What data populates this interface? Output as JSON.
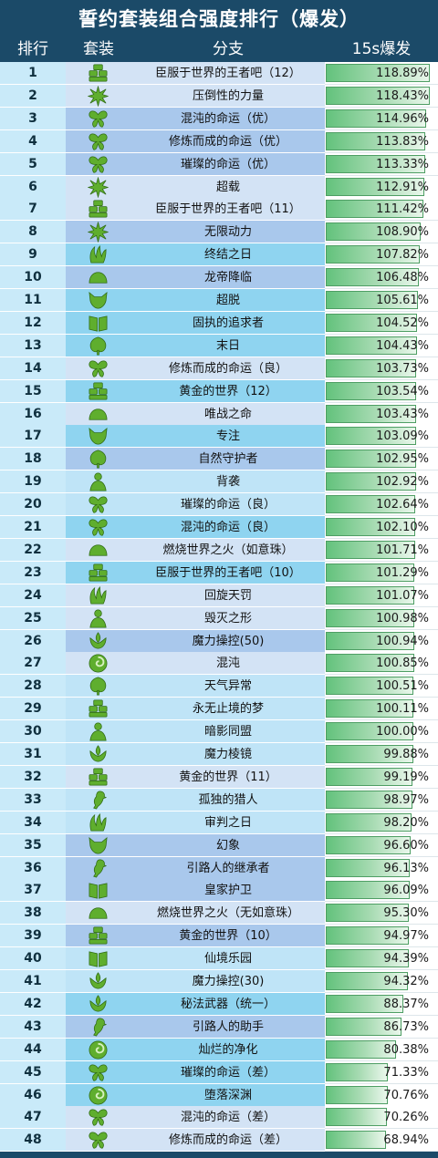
{
  "title": "誓约套装组合强度排行（爆发）",
  "headers": {
    "rank": "排行",
    "set": "套装",
    "branch": "分支",
    "burst": "15s爆发"
  },
  "colors": {
    "header_bg": "#1b4a68",
    "bar_start": "#63c27c",
    "bar_end": "#eaf7ec",
    "icon_green": "#5fae2e"
  },
  "chart_data": {
    "type": "table",
    "title": "誓约套装组合强度排行（爆发）",
    "columns": [
      "排行",
      "套装",
      "分支",
      "15s爆发"
    ],
    "rows": [
      {
        "rank": "1",
        "icon": "gold-bars-icon",
        "branch": "臣服于世界的王者吧（12）",
        "burst": 118.89,
        "label": "118.89%"
      },
      {
        "rank": "2",
        "icon": "spiky-burst-icon",
        "branch": "压倒性的力量",
        "burst": 118.43,
        "label": "118.43%"
      },
      {
        "rank": "3",
        "icon": "butterfly-icon",
        "branch": "混沌的命运（优）",
        "burst": 114.96,
        "label": "114.96%"
      },
      {
        "rank": "4",
        "icon": "butterfly-icon",
        "branch": "修炼而成的命运（优）",
        "burst": 113.83,
        "label": "113.83%"
      },
      {
        "rank": "5",
        "icon": "butterfly-icon",
        "branch": "璀璨的命运（优）",
        "burst": 113.33,
        "label": "113.33%"
      },
      {
        "rank": "6",
        "icon": "spiky-burst-icon",
        "branch": "超载",
        "burst": 112.91,
        "label": "112.91%"
      },
      {
        "rank": "7",
        "icon": "gold-bars-icon",
        "branch": "臣服于世界的王者吧（11）",
        "burst": 111.42,
        "label": "111.42%"
      },
      {
        "rank": "8",
        "icon": "spiky-burst-icon",
        "branch": "无限动力",
        "burst": 108.9,
        "label": "108.90%"
      },
      {
        "rank": "9",
        "icon": "claw-icon",
        "branch": "终结之日",
        "burst": 107.82,
        "label": "107.82%"
      },
      {
        "rank": "10",
        "icon": "dome-icon",
        "branch": "龙帝降临",
        "burst": 106.48,
        "label": "106.48%"
      },
      {
        "rank": "11",
        "icon": "fox-icon",
        "branch": "超脱",
        "burst": 105.61,
        "label": "105.61%"
      },
      {
        "rank": "12",
        "icon": "book-icon",
        "branch": "固执的追求者",
        "burst": 104.52,
        "label": "104.52%"
      },
      {
        "rank": "13",
        "icon": "leaf-icon",
        "branch": "末日",
        "burst": 104.43,
        "label": "104.43%"
      },
      {
        "rank": "14",
        "icon": "butterfly-icon",
        "branch": "修炼而成的命运（良）",
        "burst": 103.73,
        "label": "103.73%"
      },
      {
        "rank": "15",
        "icon": "gold-bars-icon",
        "branch": "黄金的世界（12）",
        "burst": 103.54,
        "label": "103.54%"
      },
      {
        "rank": "16",
        "icon": "dome-icon",
        "branch": "唯战之命",
        "burst": 103.43,
        "label": "103.43%"
      },
      {
        "rank": "17",
        "icon": "fox-icon",
        "branch": "专注",
        "burst": 103.09,
        "label": "103.09%"
      },
      {
        "rank": "18",
        "icon": "leaf-icon",
        "branch": "自然守护者",
        "burst": 102.95,
        "label": "102.95%"
      },
      {
        "rank": "19",
        "icon": "figure-icon",
        "branch": "背袭",
        "burst": 102.92,
        "label": "102.92%"
      },
      {
        "rank": "20",
        "icon": "butterfly-icon",
        "branch": "璀璨的命运（良）",
        "burst": 102.64,
        "label": "102.64%"
      },
      {
        "rank": "21",
        "icon": "butterfly-icon",
        "branch": "混沌的命运（良）",
        "burst": 102.1,
        "label": "102.10%"
      },
      {
        "rank": "22",
        "icon": "dome-icon",
        "branch": "燃烧世界之火（如意珠）",
        "burst": 101.71,
        "label": "101.71%"
      },
      {
        "rank": "23",
        "icon": "gold-bars-icon",
        "branch": "臣服于世界的王者吧（10）",
        "burst": 101.29,
        "label": "101.29%"
      },
      {
        "rank": "24",
        "icon": "claw-icon",
        "branch": "回旋天罚",
        "burst": 101.07,
        "label": "101.07%"
      },
      {
        "rank": "25",
        "icon": "figure-icon",
        "branch": "毁灭之形",
        "burst": 100.98,
        "label": "100.98%"
      },
      {
        "rank": "26",
        "icon": "lotus-icon",
        "branch": "魔力操控(50)",
        "burst": 100.94,
        "label": "100.94%"
      },
      {
        "rank": "27",
        "icon": "swirl-icon",
        "branch": "混沌",
        "burst": 100.85,
        "label": "100.85%"
      },
      {
        "rank": "28",
        "icon": "leaf-icon",
        "branch": "天气异常",
        "burst": 100.51,
        "label": "100.51%"
      },
      {
        "rank": "29",
        "icon": "gold-bars-icon",
        "branch": "永无止境的梦",
        "burst": 100.11,
        "label": "100.11%"
      },
      {
        "rank": "30",
        "icon": "figure-icon",
        "branch": "暗影同盟",
        "burst": 100.0,
        "label": "100.00%"
      },
      {
        "rank": "31",
        "icon": "lotus-icon",
        "branch": "魔力棱镜",
        "burst": 99.88,
        "label": "99.88%"
      },
      {
        "rank": "32",
        "icon": "gold-bars-icon",
        "branch": "黄金的世界（11）",
        "burst": 99.19,
        "label": "99.19%"
      },
      {
        "rank": "33",
        "icon": "bird-icon",
        "branch": "孤独的猎人",
        "burst": 98.97,
        "label": "98.97%"
      },
      {
        "rank": "34",
        "icon": "claw-icon",
        "branch": "审判之日",
        "burst": 98.2,
        "label": "98.20%"
      },
      {
        "rank": "35",
        "icon": "fox-icon",
        "branch": "幻象",
        "burst": 96.6,
        "label": "96.60%"
      },
      {
        "rank": "36",
        "icon": "bird-icon",
        "branch": "引路人的继承者",
        "burst": 96.13,
        "label": "96.13%"
      },
      {
        "rank": "37",
        "icon": "book-icon",
        "branch": "皇家护卫",
        "burst": 96.09,
        "label": "96.09%"
      },
      {
        "rank": "38",
        "icon": "dome-icon",
        "branch": "燃烧世界之火（无如意珠）",
        "burst": 95.3,
        "label": "95.30%"
      },
      {
        "rank": "39",
        "icon": "gold-bars-icon",
        "branch": "黄金的世界（10）",
        "burst": 94.97,
        "label": "94.97%"
      },
      {
        "rank": "40",
        "icon": "book-icon",
        "branch": "仙境乐园",
        "burst": 94.39,
        "label": "94.39%"
      },
      {
        "rank": "41",
        "icon": "lotus-icon",
        "branch": "魔力操控(30)",
        "burst": 94.32,
        "label": "94.32%"
      },
      {
        "rank": "42",
        "icon": "lotus-icon",
        "branch": "秘法武器（统一）",
        "burst": 88.37,
        "label": "88.37%"
      },
      {
        "rank": "43",
        "icon": "bird-icon",
        "branch": "引路人的助手",
        "burst": 86.73,
        "label": "86.73%"
      },
      {
        "rank": "44",
        "icon": "swirl-icon",
        "branch": "灿烂的净化",
        "burst": 80.38,
        "label": "80.38%"
      },
      {
        "rank": "45",
        "icon": "butterfly-icon",
        "branch": "璀璨的命运（差）",
        "burst": 71.33,
        "label": "71.33%"
      },
      {
        "rank": "46",
        "icon": "swirl-icon",
        "branch": "堕落深渊",
        "burst": 70.76,
        "label": "70.76%"
      },
      {
        "rank": "47",
        "icon": "butterfly-icon",
        "branch": "混沌的命运（差）",
        "burst": 70.26,
        "label": "70.26%"
      },
      {
        "rank": "48",
        "icon": "butterfly-icon",
        "branch": "修炼而成的命运（差）",
        "burst": 68.94,
        "label": "68.94%"
      }
    ]
  }
}
